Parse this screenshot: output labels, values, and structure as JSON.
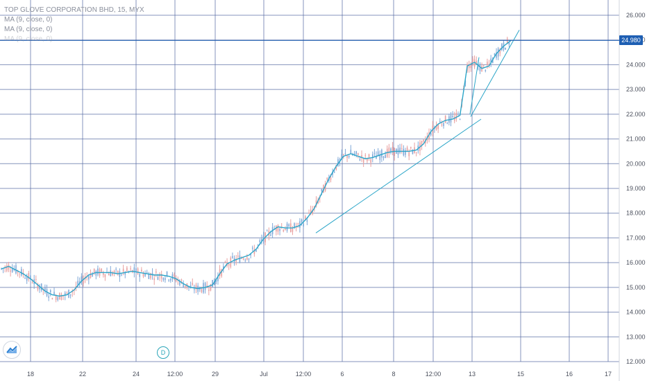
{
  "legend": {
    "symbol_line": "TOP GLOVE CORPORATION BHD, 15, MYX",
    "ma1": "MA (9, close, 0)",
    "ma2": "MA (9, close, 0)",
    "ma3": "MA (9, close, 0)"
  },
  "current_price": "24.980",
  "dividend_marker": "D",
  "logo_icon": "tradingview-logo-icon",
  "colors": {
    "grid": "#5b6fa6",
    "up": "#7fa8d8",
    "down": "#e8a0a0",
    "ma": "#2aa5c8",
    "trend": "#2aa5c8",
    "price_line": "#1e5fb3"
  },
  "chart_data": {
    "type": "line",
    "title": "TOP GLOVE CORPORATION BHD, 15, MYX",
    "ylim": [
      12,
      26
    ],
    "y_ticks": [
      "12.000",
      "13.000",
      "14.000",
      "15.000",
      "16.000",
      "17.000",
      "18.000",
      "19.000",
      "20.000",
      "21.000",
      "22.000",
      "23.000",
      "24.000",
      "25.000",
      "26.000"
    ],
    "x_ticks": [
      "18",
      "22",
      "24",
      "12:00",
      "29",
      "Jul",
      "12:00",
      "6",
      "8",
      "12:00",
      "13",
      "15",
      "16",
      "17"
    ],
    "series": [
      {
        "values": [
          15.75,
          15.85,
          15.7,
          15.55,
          15.35,
          15.1,
          14.85,
          14.7,
          14.65,
          14.7,
          14.9,
          15.25,
          15.5,
          15.6,
          15.6,
          15.6,
          15.55,
          15.6,
          15.65,
          15.6,
          15.55,
          15.5,
          15.5,
          15.45,
          15.35,
          15.15,
          15.0,
          14.95,
          15.0,
          15.1,
          15.55,
          15.95,
          16.1,
          16.2,
          16.3,
          16.55,
          16.95,
          17.25,
          17.45,
          17.4,
          17.4,
          17.5,
          17.8,
          18.2,
          18.8,
          19.4,
          19.9,
          20.3,
          20.4,
          20.3,
          20.2,
          20.25,
          20.35,
          20.45,
          20.5,
          20.5,
          20.5,
          20.55,
          20.8,
          21.3,
          21.6,
          21.75,
          21.8,
          21.95,
          23.95,
          24.1,
          23.85,
          23.95,
          24.45,
          24.75,
          24.98
        ]
      }
    ],
    "current_price": 24.98
  }
}
